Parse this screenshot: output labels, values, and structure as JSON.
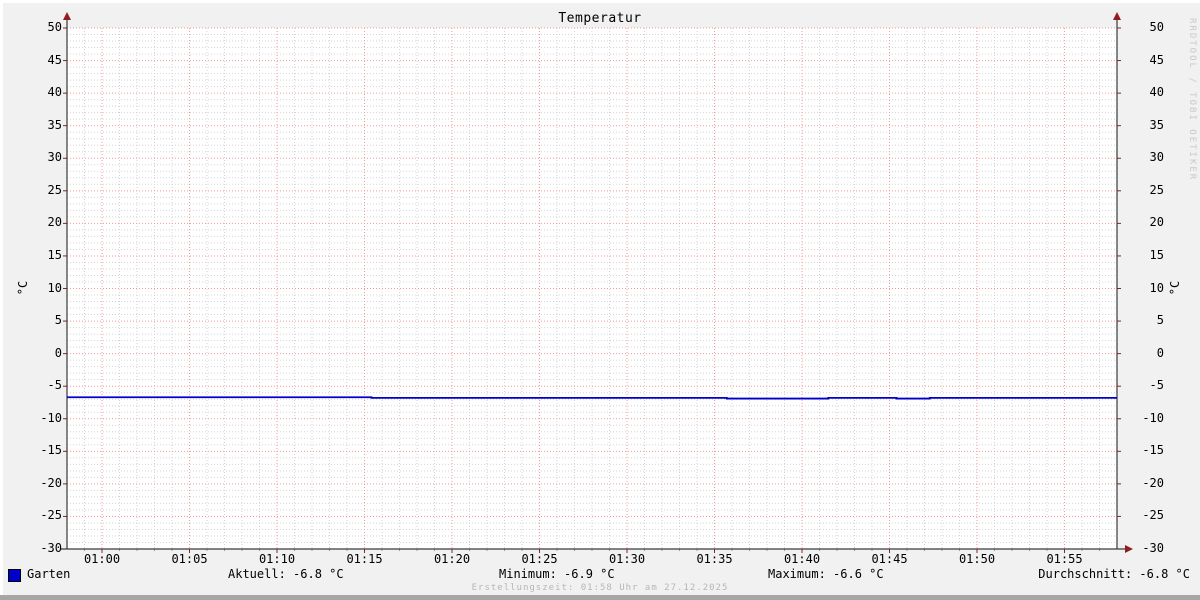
{
  "chart_data": {
    "type": "line",
    "title": "Temperatur",
    "ylabel": "°C",
    "xlabel": "",
    "ylim": [
      -30,
      50
    ],
    "y_tick_step": 5,
    "y_minor_step": 1,
    "x_start": "00:58",
    "x_end": "01:58",
    "x_total_minutes": 60,
    "x_minor_step_minutes": 1,
    "x_ticks": [
      {
        "label": "01:00",
        "minute": 2
      },
      {
        "label": "01:05",
        "minute": 7
      },
      {
        "label": "01:10",
        "minute": 12
      },
      {
        "label": "01:15",
        "minute": 17
      },
      {
        "label": "01:20",
        "minute": 22
      },
      {
        "label": "01:25",
        "minute": 27
      },
      {
        "label": "01:30",
        "minute": 32
      },
      {
        "label": "01:35",
        "minute": 37
      },
      {
        "label": "01:40",
        "minute": 42
      },
      {
        "label": "01:45",
        "minute": 47
      },
      {
        "label": "01:50",
        "minute": 52
      },
      {
        "label": "01:55",
        "minute": 57
      }
    ],
    "grid": {
      "major_color": "#f59a9a",
      "minor_color": "#d4d4d4",
      "grid_on": true
    },
    "plot_bg": "#ffffff",
    "axis_color": "#3a3a3a",
    "arrow_color": "#8f1f1f",
    "series": [
      {
        "name": "Garten",
        "color": "#0000cc",
        "step": true,
        "points_minute_value": [
          [
            0,
            -6.7
          ],
          [
            17.4,
            -6.8
          ],
          [
            37.7,
            -6.9
          ],
          [
            43.5,
            -6.8
          ],
          [
            47.4,
            -6.9
          ],
          [
            49.3,
            -6.8
          ],
          [
            60,
            -6.8
          ]
        ]
      }
    ],
    "stats": {
      "current": -6.8,
      "minimum": -6.9,
      "maximum": -6.6,
      "average": -6.8,
      "unit": "°C"
    },
    "legend_position": "bottom"
  },
  "legend": {
    "series_label": "Garten",
    "swatch_color": "#0000cc",
    "aktuell": "Aktuell: -6.8 °C",
    "minimum": "Minimum: -6.9 °C",
    "maximum": "Maximum: -6.6 °C",
    "durchschnitt": "Durchschnitt: -6.8 °C"
  },
  "footer": {
    "creation_time": "Erstellungszeit: 01:58 Uhr am 27.12.2025"
  },
  "watermark": "RRDTOOL / TOBI OETIKER",
  "colors": {
    "background": "#f1f1f1",
    "page_edge": "#ffffff",
    "scrollbar": "#a6a6a6",
    "footer_text": "#b6b6b6",
    "watermark_text": "#c9c9c9"
  }
}
